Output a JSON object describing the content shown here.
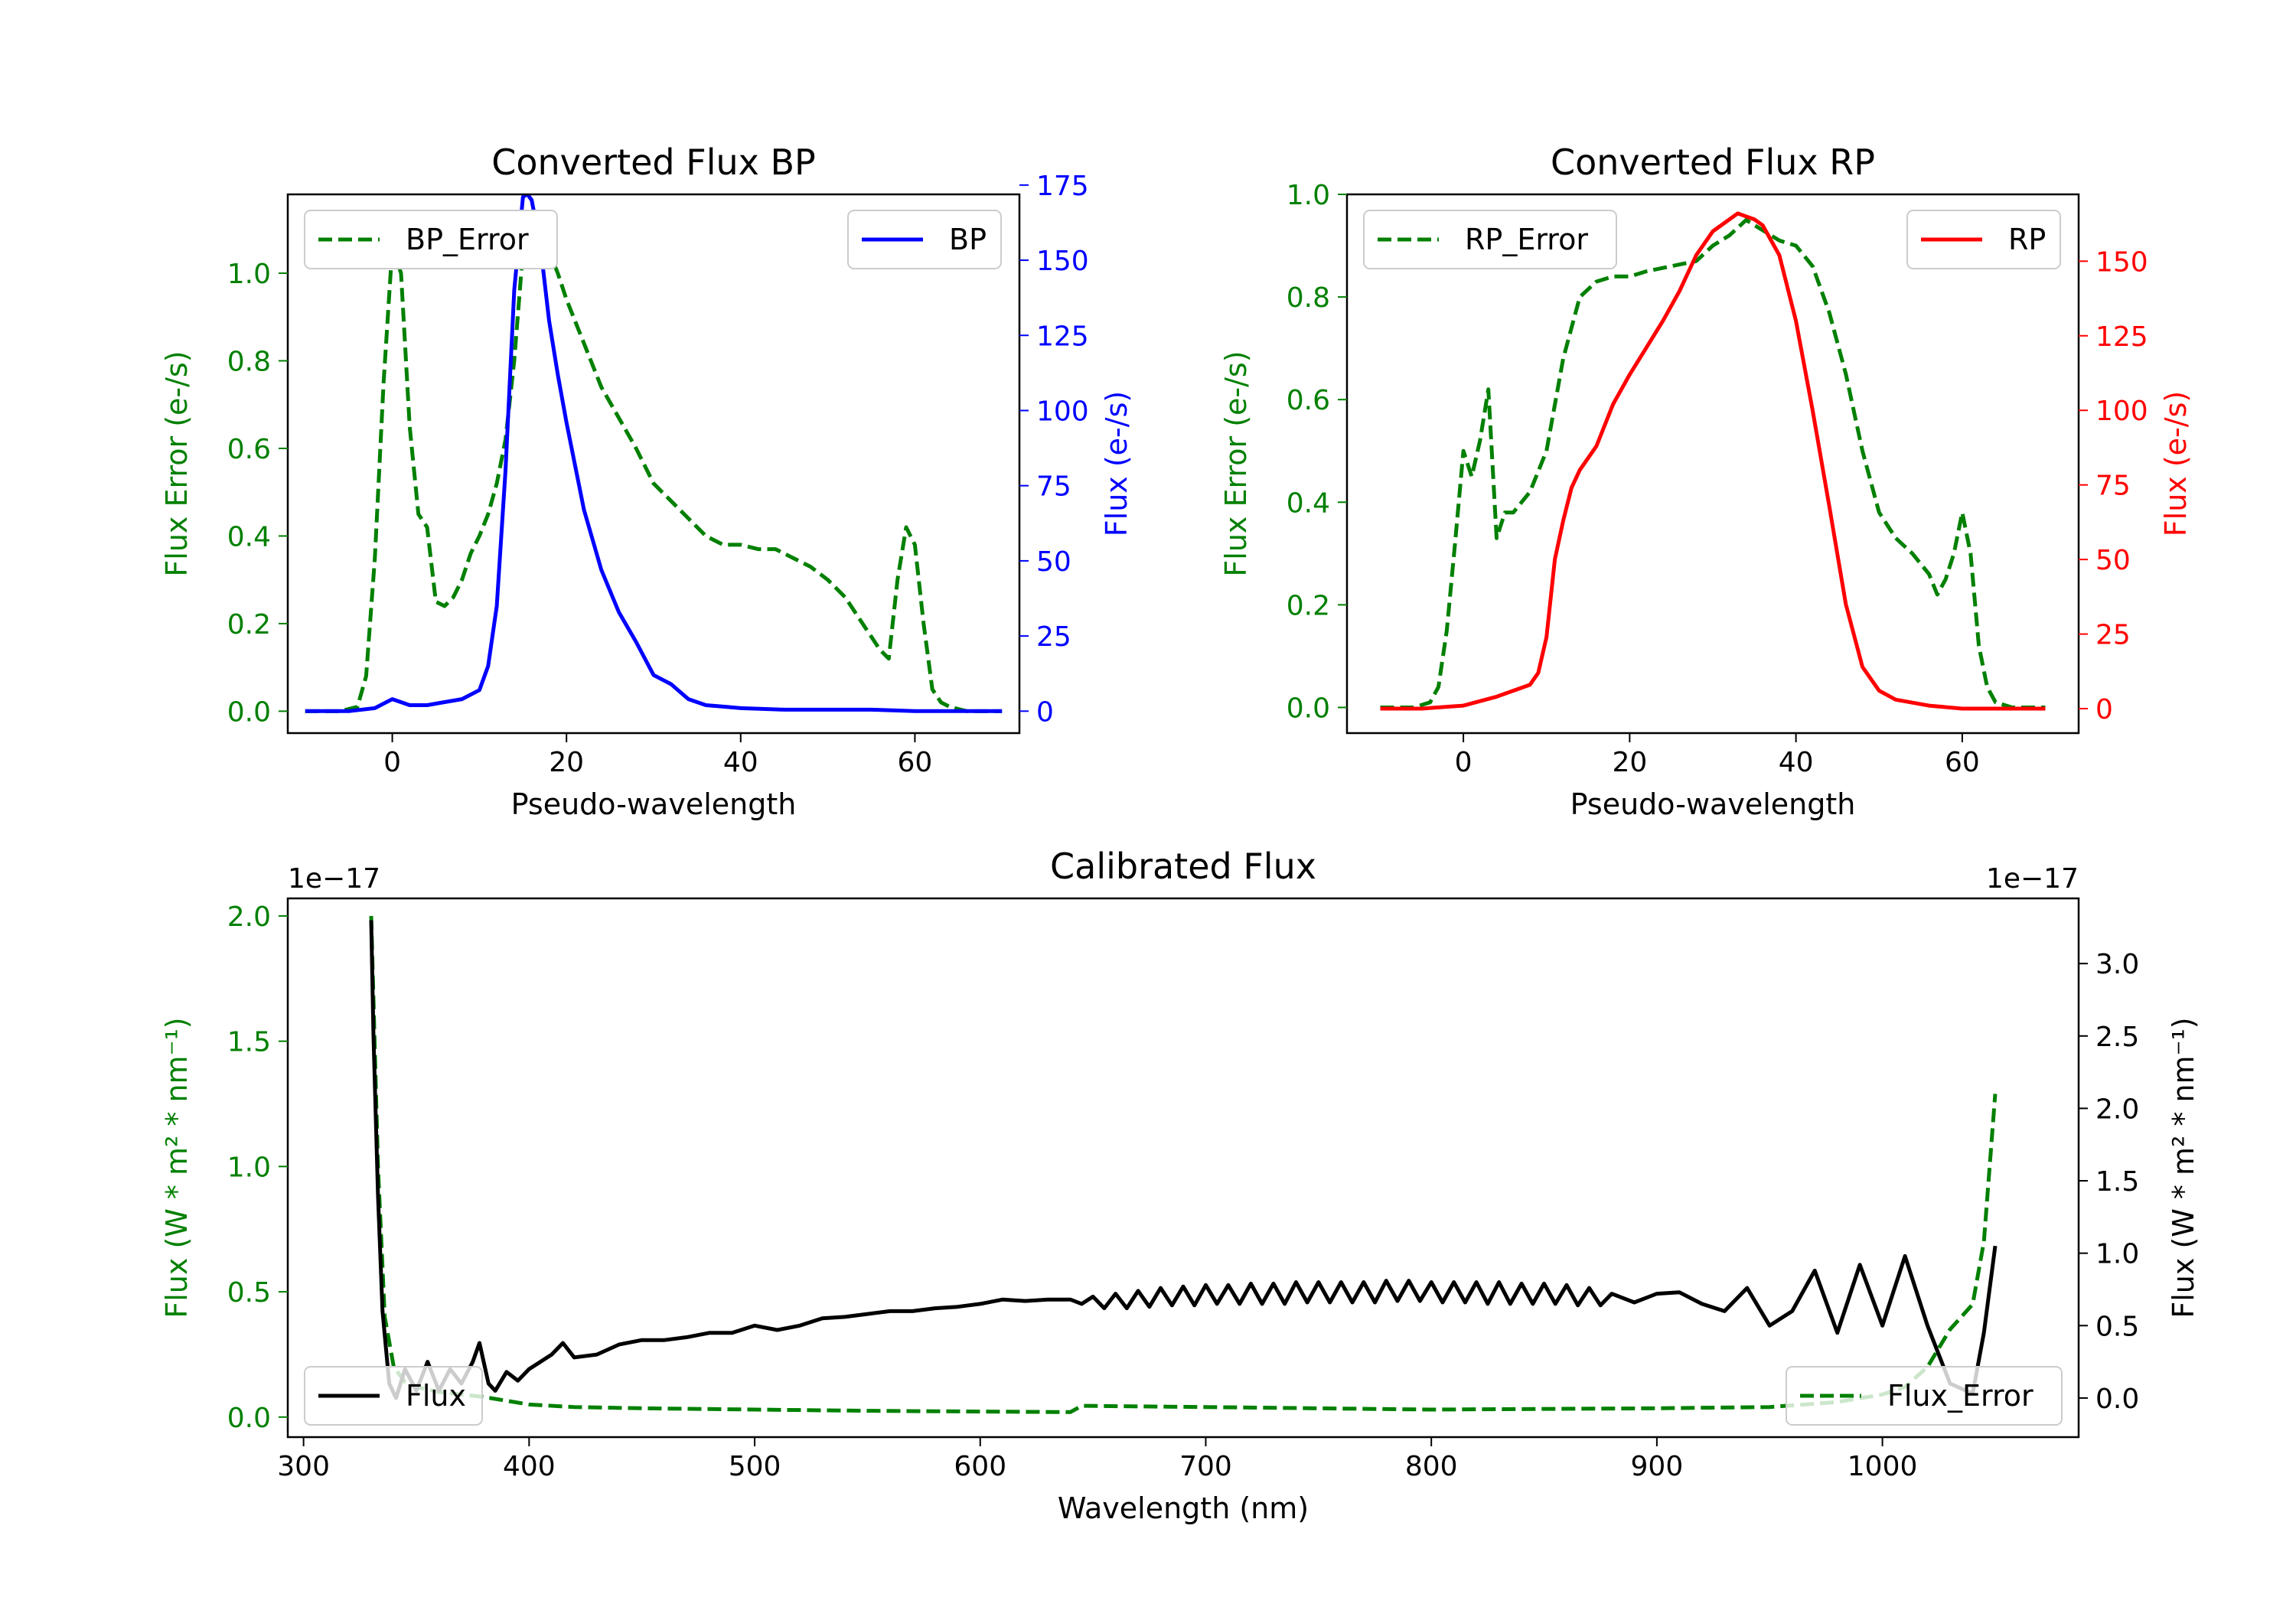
{
  "chart_data": [
    {
      "id": "bp",
      "type": "line",
      "title": "Converted Flux BP",
      "xlabel": "Pseudo-wavelength",
      "ylabel_left": "Flux Error (e-/s)",
      "ylabel_right": "Flux (e-/s)",
      "xlim": [
        -12,
        72
      ],
      "ylim_left": [
        -0.05,
        1.18
      ],
      "ylim_right": [
        -7.3,
        171.9
      ],
      "xticks": [
        0,
        20,
        40,
        60
      ],
      "yticks_left": [
        0.0,
        0.2,
        0.4,
        0.6,
        0.8,
        1.0
      ],
      "yticks_right": [
        0,
        25,
        50,
        75,
        100,
        125,
        150,
        175
      ],
      "colors": {
        "left_axis": "#008000",
        "right_axis": "#0000ff",
        "error": "#008000",
        "flux": "#0000ff"
      },
      "series": [
        {
          "name": "BP_Error",
          "axis": "left",
          "style": "dashed",
          "color": "#008000",
          "x": [
            -10,
            -6,
            -4,
            -3,
            -2,
            -1,
            0,
            1,
            2,
            3,
            4,
            5,
            6,
            7,
            8,
            9,
            10,
            11,
            12,
            13,
            14,
            15,
            16,
            17,
            18,
            19,
            20,
            22,
            24,
            26,
            28,
            30,
            32,
            34,
            36,
            38,
            40,
            42,
            44,
            46,
            48,
            50,
            52,
            54,
            56,
            57,
            58,
            59,
            60,
            61,
            62,
            63,
            64,
            66,
            68,
            70
          ],
          "y": [
            0.0,
            0.0,
            0.01,
            0.08,
            0.35,
            0.75,
            1.06,
            1.0,
            0.65,
            0.45,
            0.42,
            0.25,
            0.24,
            0.26,
            0.3,
            0.36,
            0.4,
            0.45,
            0.52,
            0.62,
            0.8,
            1.05,
            1.09,
            1.08,
            1.05,
            1.0,
            0.94,
            0.84,
            0.74,
            0.67,
            0.6,
            0.52,
            0.48,
            0.44,
            0.4,
            0.38,
            0.38,
            0.37,
            0.37,
            0.35,
            0.33,
            0.3,
            0.26,
            0.2,
            0.14,
            0.12,
            0.3,
            0.42,
            0.38,
            0.2,
            0.05,
            0.02,
            0.01,
            0.0,
            0.0,
            0.0
          ]
        },
        {
          "name": "BP",
          "axis": "right",
          "style": "solid",
          "color": "#0000ff",
          "x": [
            -10,
            -5,
            -2,
            0,
            2,
            4,
            6,
            8,
            10,
            11,
            12,
            13,
            14,
            15,
            15.5,
            16,
            17,
            18,
            19,
            20,
            22,
            24,
            26,
            28,
            30,
            32,
            34,
            36,
            38,
            40,
            45,
            50,
            55,
            60,
            65,
            70
          ],
          "y": [
            0,
            0,
            1,
            4,
            2,
            2,
            3,
            4,
            7,
            15,
            35,
            80,
            140,
            171,
            172,
            170,
            155,
            130,
            112,
            96,
            67,
            47,
            33,
            23,
            12,
            9,
            4,
            2,
            1.5,
            1,
            0.5,
            0.5,
            0.5,
            0,
            0,
            0
          ]
        }
      ],
      "legend": [
        {
          "label": "BP_Error",
          "position": "upper-left"
        },
        {
          "label": "BP",
          "position": "upper-right"
        }
      ]
    },
    {
      "id": "rp",
      "type": "line",
      "title": "Converted Flux RP",
      "xlabel": "Pseudo-wavelength",
      "ylabel_left": "Flux Error (e-/s)",
      "ylabel_right": "Flux (e-/s)",
      "xlim": [
        -14,
        74
      ],
      "ylim_left": [
        -0.05,
        1.0
      ],
      "ylim_right": [
        -8.2,
        172.4
      ],
      "xticks": [
        0,
        20,
        40,
        60
      ],
      "yticks_left": [
        0.0,
        0.2,
        0.4,
        0.6,
        0.8,
        1.0
      ],
      "yticks_right": [
        0,
        25,
        50,
        75,
        100,
        125,
        150
      ],
      "colors": {
        "left_axis": "#008000",
        "right_axis": "#ff0000",
        "error": "#008000",
        "flux": "#ff0000"
      },
      "series": [
        {
          "name": "RP_Error",
          "axis": "left",
          "style": "dashed",
          "color": "#008000",
          "x": [
            -10,
            -6,
            -4,
            -3,
            -2,
            -1,
            0,
            1,
            2,
            3,
            4,
            5,
            6,
            8,
            10,
            12,
            14,
            16,
            18,
            20,
            22,
            25,
            28,
            30,
            32,
            34,
            36,
            38,
            40,
            42,
            44,
            46,
            48,
            50,
            52,
            54,
            56,
            57,
            58,
            59,
            60,
            61,
            62,
            63,
            64,
            66,
            70
          ],
          "y": [
            0.0,
            0.0,
            0.01,
            0.04,
            0.15,
            0.32,
            0.5,
            0.45,
            0.52,
            0.62,
            0.33,
            0.38,
            0.38,
            0.42,
            0.5,
            0.68,
            0.8,
            0.83,
            0.84,
            0.84,
            0.85,
            0.86,
            0.87,
            0.9,
            0.92,
            0.95,
            0.93,
            0.91,
            0.9,
            0.86,
            0.77,
            0.65,
            0.5,
            0.38,
            0.33,
            0.3,
            0.26,
            0.22,
            0.25,
            0.3,
            0.38,
            0.3,
            0.12,
            0.04,
            0.01,
            0.0,
            0.0
          ]
        },
        {
          "name": "RP",
          "axis": "right",
          "style": "solid",
          "color": "#ff0000",
          "x": [
            -10,
            -5,
            0,
            4,
            8,
            9,
            10,
            11,
            12,
            13,
            14,
            16,
            18,
            20,
            22,
            24,
            26,
            28,
            30,
            32,
            33,
            34,
            35,
            36,
            38,
            40,
            42,
            44,
            46,
            48,
            50,
            52,
            56,
            60,
            65,
            70
          ],
          "y": [
            0,
            0,
            1,
            4,
            8,
            12,
            24,
            50,
            63,
            74,
            80,
            88,
            102,
            112,
            121,
            130,
            140,
            152,
            160,
            164,
            166,
            165,
            164,
            162,
            152,
            130,
            100,
            68,
            35,
            14,
            6,
            3,
            1,
            0,
            0,
            0
          ]
        }
      ],
      "legend": [
        {
          "label": "RP_Error",
          "position": "upper-left"
        },
        {
          "label": "RP",
          "position": "upper-right"
        }
      ]
    },
    {
      "id": "calibrated",
      "type": "line",
      "title": "Calibrated Flux",
      "xlabel": "Wavelength (nm)",
      "ylabel_left": "Flux (W * m² * nm⁻¹)",
      "ylabel_right": "Flux (W * m² * nm⁻¹)",
      "offset_left": "1e−17",
      "offset_right": "1e−17",
      "xlim": [
        293,
        1087
      ],
      "ylim_left": [
        -0.08,
        2.07
      ],
      "ylim_right": [
        -0.27,
        3.45
      ],
      "xticks": [
        300,
        400,
        500,
        600,
        700,
        800,
        900,
        1000
      ],
      "yticks_left": [
        0.0,
        0.5,
        1.0,
        1.5,
        2.0
      ],
      "yticks_right": [
        0.0,
        0.5,
        1.0,
        1.5,
        2.0,
        2.5,
        3.0
      ],
      "colors": {
        "left_axis": "#008000",
        "right_axis": "#000000",
        "error": "#008000",
        "flux": "#000000"
      },
      "series": [
        {
          "name": "Flux_Error",
          "axis": "left",
          "style": "dashed",
          "color": "#008000",
          "x": [
            330,
            333,
            336,
            340,
            345,
            350,
            360,
            380,
            400,
            420,
            450,
            500,
            550,
            600,
            640,
            645,
            700,
            800,
            900,
            950,
            980,
            1000,
            1010,
            1020,
            1030,
            1040,
            1045,
            1050
          ],
          "y": [
            2.0,
            1.0,
            0.4,
            0.2,
            0.14,
            0.12,
            0.1,
            0.08,
            0.05,
            0.04,
            0.035,
            0.03,
            0.025,
            0.022,
            0.02,
            0.045,
            0.04,
            0.03,
            0.035,
            0.04,
            0.06,
            0.09,
            0.12,
            0.2,
            0.35,
            0.45,
            0.7,
            1.29
          ]
        },
        {
          "name": "Flux",
          "axis": "right",
          "style": "solid",
          "color": "#000000",
          "x": [
            330,
            331,
            333,
            335,
            338,
            341,
            345,
            350,
            355,
            360,
            365,
            370,
            375,
            378,
            382,
            385,
            390,
            395,
            400,
            405,
            410,
            415,
            420,
            430,
            440,
            450,
            460,
            470,
            480,
            490,
            500,
            510,
            520,
            530,
            540,
            550,
            560,
            570,
            580,
            590,
            600,
            610,
            620,
            630,
            640,
            645,
            650,
            655,
            660,
            665,
            670,
            675,
            680,
            685,
            690,
            695,
            700,
            705,
            710,
            715,
            720,
            725,
            730,
            735,
            740,
            745,
            750,
            755,
            760,
            765,
            770,
            775,
            780,
            785,
            790,
            795,
            800,
            805,
            810,
            815,
            820,
            825,
            830,
            835,
            840,
            845,
            850,
            855,
            860,
            865,
            870,
            875,
            880,
            890,
            900,
            910,
            920,
            930,
            940,
            950,
            960,
            970,
            980,
            990,
            1000,
            1010,
            1020,
            1030,
            1040,
            1045,
            1050
          ],
          "y": [
            3.3,
            2.5,
            1.4,
            0.6,
            0.1,
            0.0,
            0.2,
            0.05,
            0.25,
            0.05,
            0.2,
            0.1,
            0.25,
            0.38,
            0.1,
            0.05,
            0.18,
            0.12,
            0.2,
            0.25,
            0.3,
            0.38,
            0.28,
            0.3,
            0.37,
            0.4,
            0.4,
            0.42,
            0.45,
            0.45,
            0.5,
            0.47,
            0.5,
            0.55,
            0.56,
            0.58,
            0.6,
            0.6,
            0.62,
            0.63,
            0.65,
            0.68,
            0.67,
            0.68,
            0.68,
            0.65,
            0.7,
            0.62,
            0.72,
            0.62,
            0.74,
            0.63,
            0.76,
            0.64,
            0.77,
            0.64,
            0.78,
            0.65,
            0.78,
            0.65,
            0.79,
            0.65,
            0.79,
            0.65,
            0.8,
            0.66,
            0.8,
            0.66,
            0.8,
            0.66,
            0.8,
            0.66,
            0.81,
            0.67,
            0.81,
            0.67,
            0.8,
            0.66,
            0.8,
            0.66,
            0.8,
            0.65,
            0.8,
            0.65,
            0.79,
            0.65,
            0.79,
            0.65,
            0.78,
            0.64,
            0.76,
            0.64,
            0.72,
            0.66,
            0.72,
            0.73,
            0.65,
            0.6,
            0.76,
            0.5,
            0.6,
            0.88,
            0.45,
            0.92,
            0.5,
            0.98,
            0.5,
            0.1,
            0.03,
            0.45,
            1.05
          ]
        }
      ],
      "legend": [
        {
          "label": "Flux",
          "position": "lower-left"
        },
        {
          "label": "Flux_Error",
          "position": "lower-right"
        }
      ]
    }
  ]
}
